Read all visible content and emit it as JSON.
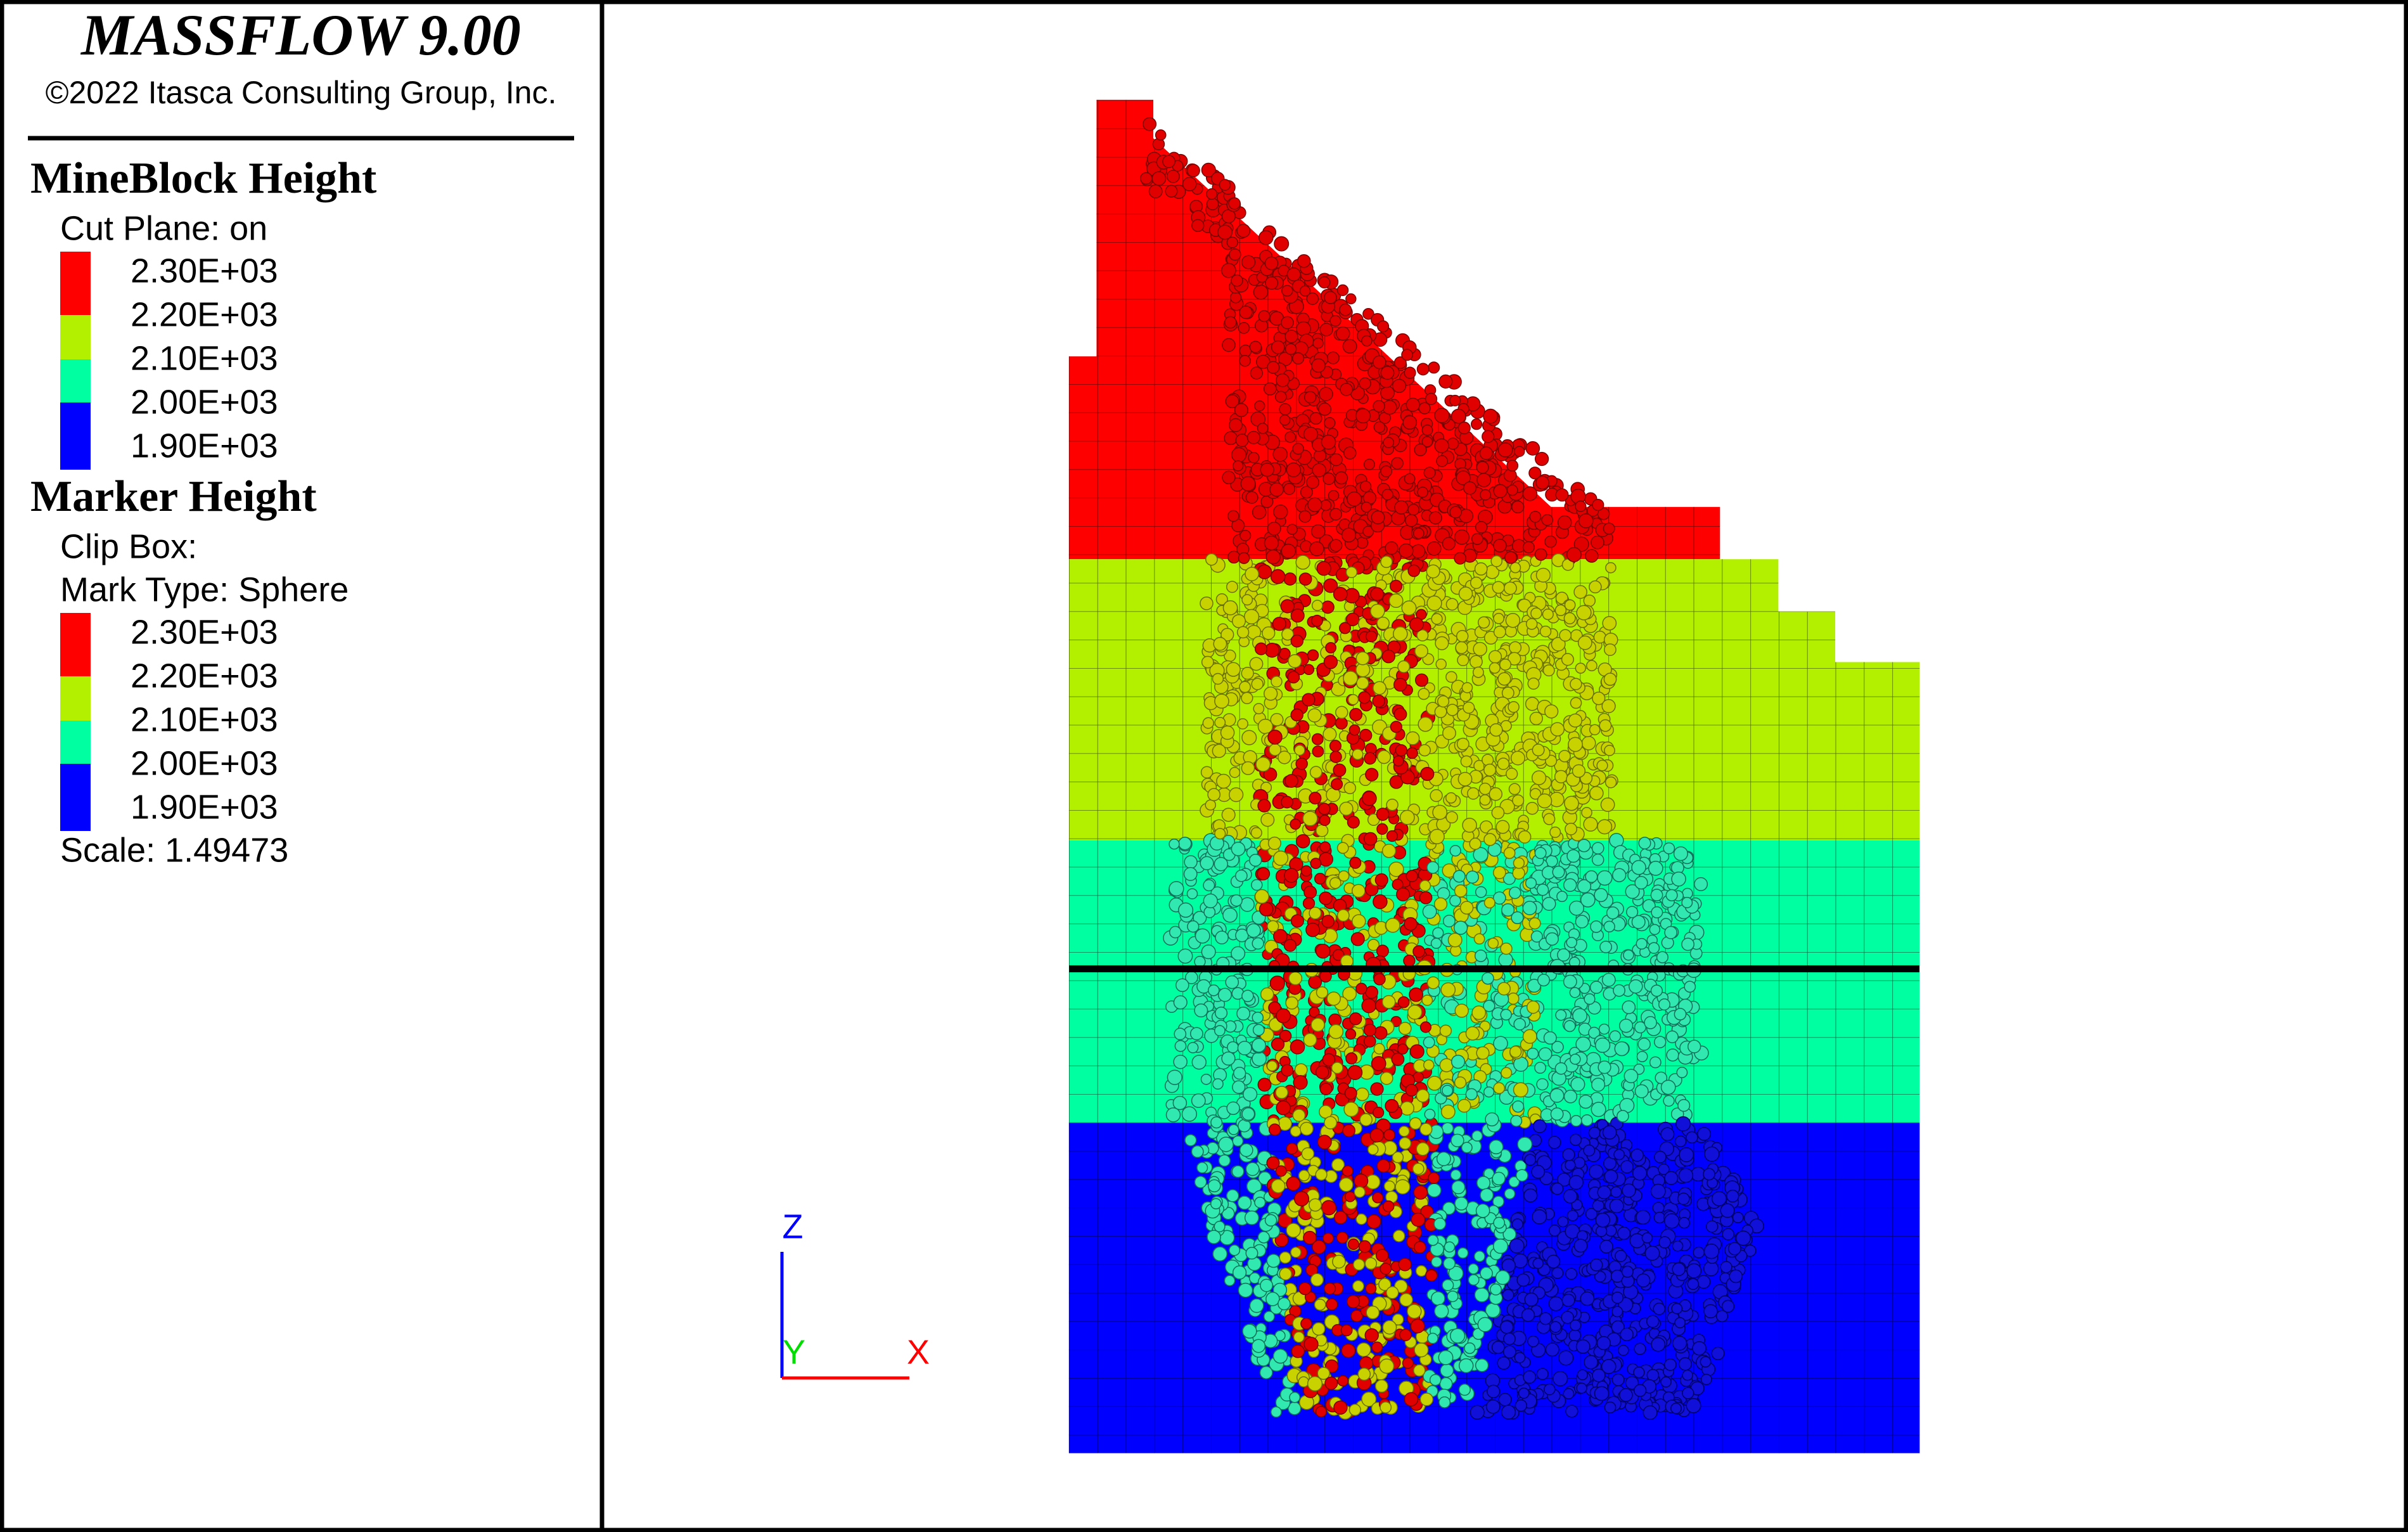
{
  "header": {
    "title": "MASSFLOW 9.00",
    "copyright": "©2022 Itasca Consulting Group, Inc."
  },
  "legends": [
    {
      "title": "MineBlock Height",
      "lines": [
        "Cut Plane: on"
      ],
      "labels": [
        "2.30E+03",
        "2.20E+03",
        "2.10E+03",
        "2.00E+03",
        "1.90E+03"
      ],
      "colors": [
        "#ff0000",
        "#b2f000",
        "#00ffa0",
        "#0000ff"
      ]
    },
    {
      "title": "Marker Height",
      "lines": [
        "Clip Box:",
        "Mark Type: Sphere"
      ],
      "labels": [
        "2.30E+03",
        "2.20E+03",
        "2.10E+03",
        "2.00E+03",
        "1.90E+03"
      ],
      "colors": [
        "#ff0000",
        "#b2f000",
        "#00ffa0",
        "#0000ff"
      ],
      "footer": "Scale: 1.49473"
    }
  ],
  "axes": {
    "z": "Z",
    "y": "Y",
    "x": "X"
  }
}
